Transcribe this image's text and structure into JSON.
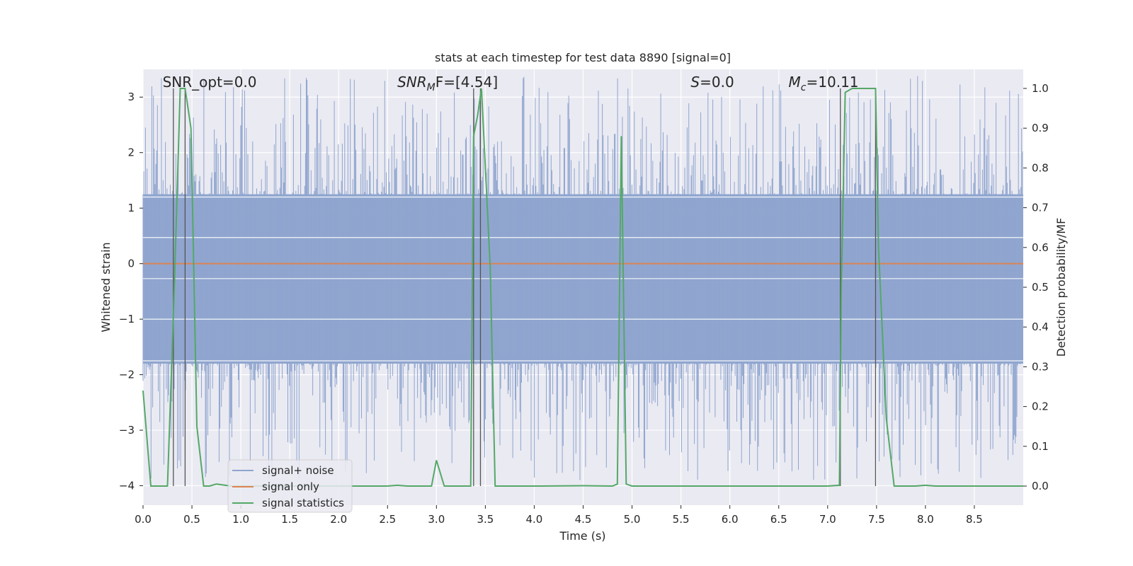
{
  "chart_data": {
    "type": "line",
    "title": "stats at each timestep for test data 8890 [signal=0]",
    "xlabel": "Time (s)",
    "ylabel": "Whitened strain",
    "y2label": "Detection probability/MF",
    "xlim": [
      0,
      9
    ],
    "ylim": [
      -4.35,
      3.5
    ],
    "y2lim": [
      -0.048,
      1.048
    ],
    "xticks": [
      "0.0",
      "0.5",
      "1.0",
      "1.5",
      "2.0",
      "2.5",
      "3.0",
      "3.5",
      "4.0",
      "4.5",
      "5.0",
      "5.5",
      "6.0",
      "6.5",
      "7.0",
      "7.5",
      "8.0",
      "8.5"
    ],
    "yticks": [
      "−4",
      "−3",
      "−2",
      "−1",
      "0",
      "1",
      "2",
      "3"
    ],
    "y2ticks": [
      "0.0",
      "0.1",
      "0.2",
      "0.3",
      "0.4",
      "0.5",
      "0.6",
      "0.7",
      "0.8",
      "0.9",
      "1.0"
    ],
    "grid": true,
    "legend_position": "lower-left",
    "annotations": [
      {
        "base": "SNR_opt=0.0",
        "sub": "",
        "tail": "",
        "x": 0.2,
        "italic": false
      },
      {
        "base": "SNR",
        "sub": "M",
        "tail": "F=[4.54]",
        "x": 2.6,
        "italic": true
      },
      {
        "base": "S",
        "sub": "",
        "tail": "=0.0",
        "x": 5.6,
        "italic": true
      },
      {
        "base": "M",
        "sub": "c",
        "tail": "=10.11",
        "x": 6.6,
        "italic": true
      }
    ],
    "series": [
      {
        "name": "signal+ noise",
        "color": "#8fa5cf",
        "band_lower": -1.8,
        "band_upper": 1.25,
        "max_peak": 3.4,
        "min_peak": -3.9
      },
      {
        "name": "signal only",
        "color": "#dd8452",
        "values_constant": 0
      },
      {
        "name": "signal statistics",
        "color": "#55a868",
        "x": [
          0.0,
          0.08,
          0.25,
          0.32,
          0.38,
          0.43,
          0.49,
          0.55,
          0.62,
          0.68,
          0.75,
          0.9,
          1.5,
          2.0,
          2.5,
          2.6,
          2.7,
          2.95,
          3.0,
          3.08,
          3.35,
          3.38,
          3.42,
          3.46,
          3.55,
          3.6,
          4.0,
          4.5,
          4.8,
          4.85,
          4.89,
          4.94,
          5.0,
          6.0,
          7.0,
          7.12,
          7.14,
          7.18,
          7.25,
          7.49,
          7.52,
          7.6,
          7.68,
          7.9,
          8.0,
          8.1,
          8.5,
          9.0
        ],
        "values": [
          0.24,
          0.0,
          0.0,
          0.5,
          1.0,
          1.0,
          0.9,
          0.15,
          0.0,
          0.0,
          0.005,
          0.0,
          0.0,
          0.0,
          0.0,
          0.002,
          0.0,
          0.0,
          0.065,
          0.0,
          0.0,
          0.88,
          0.93,
          1.0,
          0.55,
          0.0,
          0.0,
          0.001,
          0.0,
          0.005,
          0.88,
          0.005,
          0.0,
          0.0,
          0.0,
          0.002,
          0.5,
          0.99,
          1.0,
          1.0,
          0.6,
          0.17,
          0.0,
          0.0,
          0.002,
          0.0,
          0.0,
          0.0
        ]
      }
    ],
    "vertical_lines_x": [
      0.31,
      0.43,
      3.38,
      3.45,
      7.13,
      7.49
    ]
  }
}
